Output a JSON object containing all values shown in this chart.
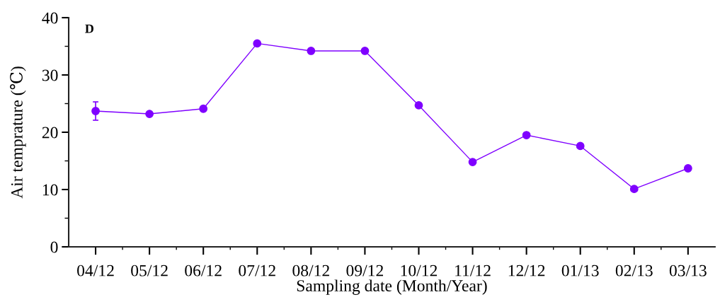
{
  "chart_data": {
    "type": "line",
    "xlabel": "Sampling date (Month/Year)",
    "ylabel": "Air temprature (℃)",
    "annotations": [
      "D"
    ],
    "categories": [
      "04/12",
      "05/12",
      "06/12",
      "07/12",
      "08/12",
      "09/12",
      "10/12",
      "11/12",
      "12/12",
      "01/13",
      "02/13",
      "03/13"
    ],
    "series": [
      {
        "color": "#7f00ff",
        "values": [
          23.7,
          23.2,
          24.1,
          35.5,
          34.2,
          34.2,
          24.7,
          14.8,
          19.5,
          17.6,
          10.1,
          13.7
        ],
        "errors": [
          1.6,
          null,
          null,
          null,
          null,
          null,
          null,
          null,
          null,
          null,
          null,
          null
        ]
      }
    ],
    "ylim": [
      0,
      40
    ],
    "yticks": [
      0,
      10,
      20,
      30,
      40
    ],
    "marker": "circle",
    "line_style": "solid",
    "grid": false
  }
}
